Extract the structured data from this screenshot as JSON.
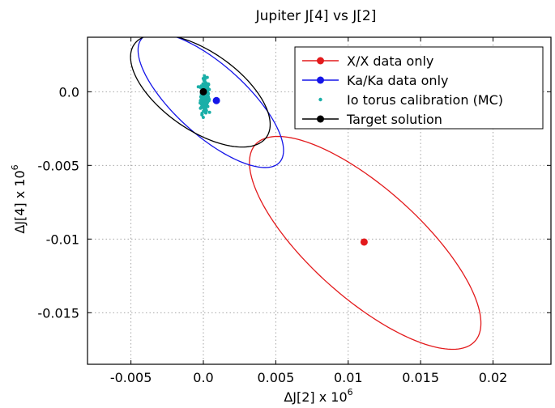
{
  "chart_data": {
    "type": "scatter",
    "title": "Jupiter J[4] vs J[2]",
    "xlabel": "ΔJ[2] x 10",
    "xlabel_sup": "6",
    "ylabel": "ΔJ[4] x 10",
    "ylabel_sup": "6",
    "xlim": [
      -0.008,
      0.024
    ],
    "ylim": [
      -0.0185,
      0.0037
    ],
    "xticks": [
      -0.005,
      0.0,
      0.005,
      0.01,
      0.015,
      0.02
    ],
    "xtick_labels": [
      "-0.005",
      "0.0",
      "0.005",
      "0.01",
      "0.015",
      "0.02"
    ],
    "yticks": [
      0.0,
      -0.005,
      -0.01,
      -0.015
    ],
    "ytick_labels": [
      "0.0",
      "-0.005",
      "-0.01",
      "-0.015"
    ],
    "grid": true,
    "legend_position": "top-right",
    "series": [
      {
        "name": "X/X data only",
        "color": "#e31a1c",
        "point": [
          0.0111,
          -0.0102
        ],
        "ellipse": {
          "points": [
            [
              0.0187,
              -0.0138
            ],
            [
              0.0152,
              -0.0171
            ],
            [
              0.0085,
              -0.0129
            ],
            [
              0.0036,
              -0.0066
            ],
            [
              0.0071,
              -0.0034
            ],
            [
              0.0122,
              -0.0052
            ]
          ]
        }
      },
      {
        "name": "Ka/Ka data only",
        "color": "#1515e8",
        "point": [
          0.0009,
          -0.0006
        ],
        "ellipse": {
          "points": [
            [
              0.0055,
              -0.0036
            ],
            [
              0.0033,
              -0.005
            ],
            [
              -0.0022,
              -0.0013
            ],
            [
              -0.0045,
              0.003
            ],
            [
              -0.0009,
              0.0033
            ],
            [
              0.0031,
              0.001
            ]
          ]
        }
      },
      {
        "name": "Io torus calibration (MC)",
        "color": "#1aafa8",
        "cloud": {
          "center": [
            0.0001,
            -0.0003
          ],
          "spread_x": 0.00025,
          "spread_y": 0.0011,
          "tilt": -0.15,
          "count": 220
        }
      },
      {
        "name": "Target solution",
        "color": "#000000",
        "point": [
          0.0,
          0.0
        ],
        "ellipse": {
          "points": [
            [
              0.0046,
              -0.002
            ],
            [
              0.002,
              -0.0037
            ],
            [
              -0.0035,
              -0.0006
            ],
            [
              -0.0045,
              0.0035
            ],
            [
              -0.0011,
              0.0035
            ],
            [
              0.0027,
              0.0012
            ]
          ]
        }
      }
    ]
  }
}
